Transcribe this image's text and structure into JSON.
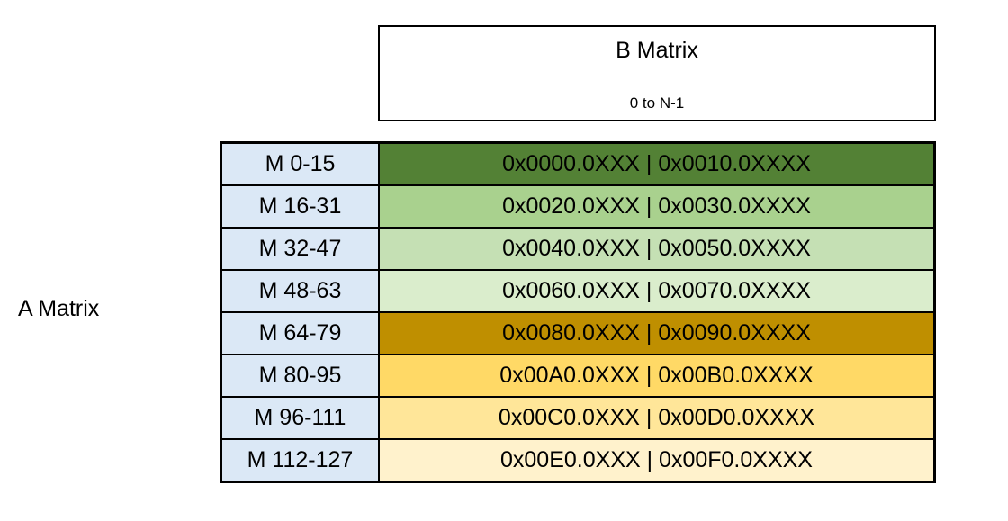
{
  "a_matrix": {
    "label": "A Matrix"
  },
  "b_matrix": {
    "title": "B Matrix",
    "subtitle": "0 to N-1"
  },
  "memory_map": {
    "label_cell_color": "#DBE8F6",
    "border_color": "#000000",
    "rows": [
      {
        "label": "M 0-15",
        "value": "0x0000.0XXX | 0x0010.0XXXX",
        "color": "#538135"
      },
      {
        "label": "M 16-31",
        "value": "0x0020.0XXX | 0x0030.0XXXX",
        "color": "#A9D18E"
      },
      {
        "label": "M 32-47",
        "value": "0x0040.0XXX | 0x0050.0XXXX",
        "color": "#C5E0B4"
      },
      {
        "label": "M 48-63",
        "value": "0x0060.0XXX | 0x0070.0XXXX",
        "color": "#DAEDCC"
      },
      {
        "label": "M 64-79",
        "value": "0x0080.0XXX | 0x0090.0XXXX",
        "color": "#BF8F00"
      },
      {
        "label": "M 80-95",
        "value": "0x00A0.0XXX | 0x00B0.0XXXX",
        "color": "#FFD966"
      },
      {
        "label": "M 96-111",
        "value": "0x00C0.0XXX | 0x00D0.0XXXX",
        "color": "#FFE699"
      },
      {
        "label": "M 112-127",
        "value": "0x00E0.0XXX | 0x00F0.0XXXX",
        "color": "#FFF2CC"
      }
    ]
  }
}
